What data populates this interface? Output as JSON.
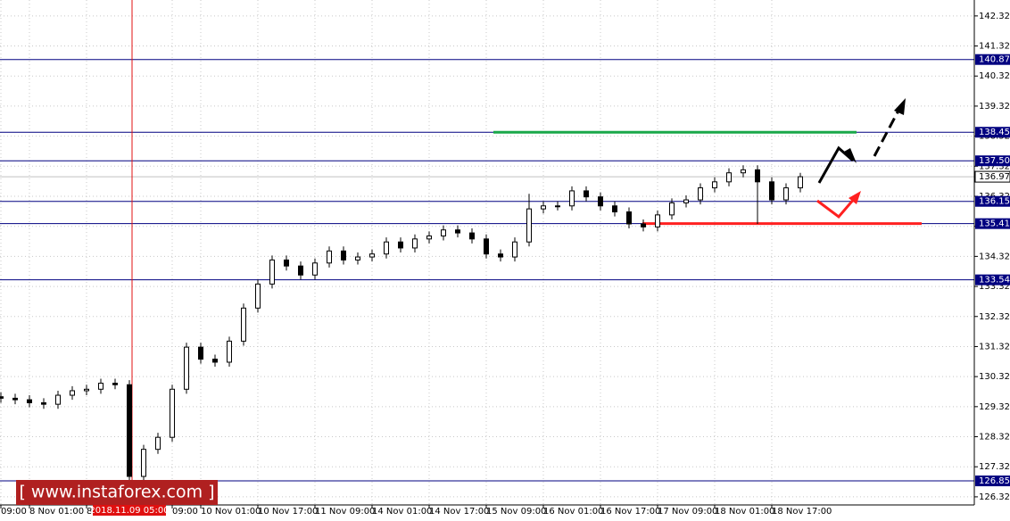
{
  "chart_data": {
    "type": "candlestick",
    "categories": [
      "09:00",
      null,
      "8 Nov 01:00",
      null,
      null,
      null,
      "8",
      null,
      null,
      null,
      null,
      null,
      "09:00",
      null,
      "10 Nov 01:00",
      null,
      null,
      null,
      "10 Nov 17:00",
      null,
      null,
      null,
      "11 Nov 09:00",
      null,
      null,
      null,
      "14 Nov 01:00",
      null,
      null,
      null,
      "14 Nov 17:00",
      null,
      null,
      null,
      "15 Nov 09:00",
      null,
      null,
      null,
      "16 Nov 01:00",
      null,
      null,
      null,
      "16 Nov 17:00",
      null,
      null,
      null,
      "17 Nov 09:00",
      null,
      null,
      null,
      "18 Nov 01:00",
      null,
      null,
      null,
      "18 Nov 17:00",
      null,
      null
    ],
    "open": [
      129.65,
      129.6,
      129.55,
      129.45,
      129.4,
      129.7,
      129.85,
      129.9,
      130.1,
      130.05,
      127.0,
      127.9,
      128.3,
      129.9,
      131.3,
      130.9,
      130.8,
      131.5,
      132.6,
      133.4,
      134.2,
      134.0,
      133.7,
      134.1,
      134.5,
      134.2,
      134.3,
      134.4,
      134.8,
      134.6,
      134.9,
      135.0,
      135.2,
      135.1,
      134.9,
      134.4,
      134.3,
      134.8,
      135.9,
      136.0,
      136.0,
      136.5,
      136.3,
      136.0,
      135.8,
      135.4,
      135.3,
      135.7,
      136.1,
      136.2,
      136.6,
      136.8,
      137.1,
      137.2,
      136.8,
      136.2,
      136.6
    ],
    "high": [
      129.8,
      129.75,
      129.7,
      129.6,
      129.85,
      130.0,
      130.05,
      130.25,
      130.25,
      130.2,
      128.05,
      128.45,
      130.05,
      131.45,
      131.45,
      131.05,
      131.65,
      132.75,
      133.55,
      134.35,
      134.35,
      134.15,
      134.25,
      134.65,
      134.65,
      134.45,
      134.55,
      134.95,
      134.95,
      135.05,
      135.15,
      135.35,
      135.35,
      135.25,
      135.05,
      134.55,
      134.95,
      136.4,
      136.15,
      136.15,
      136.65,
      136.65,
      136.45,
      136.15,
      135.95,
      135.55,
      135.85,
      136.25,
      136.35,
      136.75,
      136.95,
      137.25,
      137.35,
      137.35,
      136.95,
      136.75,
      137.1
    ],
    "low": [
      129.45,
      129.4,
      129.3,
      129.25,
      129.25,
      129.55,
      129.7,
      129.75,
      129.9,
      126.8,
      126.85,
      127.75,
      128.15,
      129.75,
      130.75,
      130.65,
      130.65,
      131.35,
      132.45,
      133.25,
      133.85,
      133.55,
      133.55,
      133.95,
      134.05,
      134.05,
      134.15,
      134.25,
      134.45,
      134.45,
      134.75,
      134.85,
      134.95,
      134.75,
      134.25,
      134.15,
      134.15,
      134.65,
      135.75,
      135.85,
      135.85,
      136.15,
      135.85,
      135.65,
      135.25,
      135.15,
      135.15,
      135.55,
      135.95,
      136.05,
      136.45,
      136.65,
      136.95,
      135.4,
      136.05,
      136.05,
      136.45
    ],
    "close": [
      129.6,
      129.55,
      129.45,
      129.4,
      129.7,
      129.85,
      129.9,
      130.1,
      130.05,
      127.0,
      127.9,
      128.3,
      129.9,
      131.3,
      130.9,
      130.8,
      131.5,
      132.6,
      133.4,
      134.2,
      134.0,
      133.7,
      134.1,
      134.5,
      134.2,
      134.3,
      134.4,
      134.8,
      134.6,
      134.9,
      135.0,
      135.2,
      135.1,
      134.9,
      134.4,
      134.3,
      134.8,
      135.9,
      136.0,
      136.0,
      136.5,
      136.3,
      136.0,
      135.8,
      135.4,
      135.3,
      135.7,
      136.1,
      136.2,
      136.6,
      136.8,
      137.1,
      137.2,
      136.8,
      136.2,
      136.6,
      136.97
    ],
    "ylim": [
      126.05,
      142.85
    ],
    "yticks": [
      142.32,
      141.32,
      140.32,
      139.32,
      138.32,
      137.32,
      136.32,
      135.32,
      134.32,
      133.32,
      132.32,
      131.32,
      130.32,
      129.32,
      128.32,
      127.32,
      126.32
    ],
    "levels": [
      140.87,
      138.45,
      {
        "value": 137.5,
        "label": "137.50"
      },
      136.15,
      135.41,
      133.54,
      126.85
    ],
    "level_color": "#000080",
    "last_price": 136.97,
    "resistance": 138.45,
    "resistance_color": "#1aa84a",
    "support": 135.41,
    "support_color": "#ff2020",
    "cursor_label": "2018.11.09 05:00",
    "watermark": "[  www.instaforex.com  ]",
    "grid": true
  }
}
